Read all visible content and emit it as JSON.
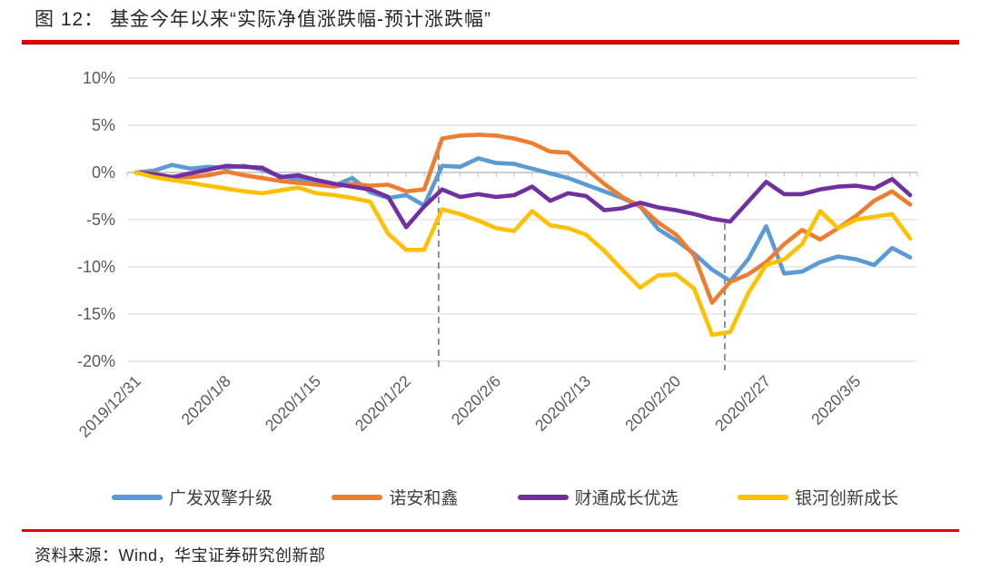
{
  "figure": {
    "title": "图 12： 基金今年以来“实际净值涨跌幅-预计涨跌幅”",
    "source": "资料来源：Wind，华宝证券研究创新部",
    "accent_red": "#E60000"
  },
  "chart_data": {
    "type": "line",
    "title": "基金今年以来“实际净值涨跌幅-预计涨跌幅”",
    "grid": true,
    "legend_position": "bottom",
    "x_axis": {
      "n_points": 44,
      "tick_labels": [
        "2019/12/31",
        "2020/1/8",
        "2020/1/15",
        "2020/1/22",
        "2020/2/6",
        "2020/2/13",
        "2020/2/20",
        "2020/2/27",
        "2020/3/5"
      ],
      "tick_indices": [
        0,
        5,
        10,
        15,
        20,
        25,
        30,
        35,
        40
      ]
    },
    "y_axis": {
      "ticks": [
        10,
        5,
        0,
        -5,
        -10,
        -15,
        -20
      ],
      "suffix": "%",
      "ylim": [
        -20,
        10
      ]
    },
    "vlines": [
      {
        "index": 16.8,
        "style": "dashed"
      },
      {
        "index": 32.7,
        "style": "dashed"
      }
    ],
    "series": [
      {
        "name": "广发双擎升级",
        "color": "#5B9BD5",
        "values": [
          0.0,
          0.2,
          0.8,
          0.4,
          0.6,
          0.5,
          0.7,
          0.3,
          -0.4,
          -0.7,
          -1.2,
          -1.4,
          -0.6,
          -2.1,
          -2.7,
          -2.4,
          -3.5,
          0.7,
          0.6,
          1.5,
          1.0,
          0.9,
          0.4,
          -0.1,
          -0.6,
          -1.3,
          -2.0,
          -2.7,
          -3.6,
          -6.0,
          -7.2,
          -8.6,
          -10.3,
          -11.5,
          -9.2,
          -5.7,
          -10.7,
          -10.5,
          -9.5,
          -8.9,
          -9.2,
          -9.8,
          -8.0,
          -9.0
        ]
      },
      {
        "name": "诺安和鑫",
        "color": "#ED7D31",
        "values": [
          0.0,
          -0.1,
          -0.5,
          -0.5,
          -0.3,
          0.1,
          -0.3,
          -0.6,
          -0.9,
          -1.1,
          -1.3,
          -1.5,
          -1.2,
          -1.4,
          -1.3,
          -2.0,
          -1.8,
          3.6,
          3.9,
          4.0,
          3.9,
          3.6,
          3.1,
          2.2,
          2.1,
          0.4,
          -1.2,
          -2.6,
          -3.6,
          -5.3,
          -6.6,
          -8.8,
          -13.8,
          -11.6,
          -10.8,
          -9.5,
          -7.6,
          -6.1,
          -7.1,
          -5.9,
          -4.6,
          -3.0,
          -2.0,
          -3.4
        ]
      },
      {
        "name": "财通成长优选",
        "color": "#7030A0",
        "values": [
          0.0,
          -0.2,
          -0.5,
          -0.1,
          0.3,
          0.7,
          0.6,
          0.5,
          -0.5,
          -0.3,
          -0.8,
          -1.2,
          -1.5,
          -1.8,
          -2.6,
          -5.8,
          -3.6,
          -1.8,
          -2.6,
          -2.3,
          -2.6,
          -2.4,
          -1.5,
          -3.0,
          -2.2,
          -2.5,
          -4.0,
          -3.8,
          -3.2,
          -3.7,
          -4.0,
          -4.4,
          -4.9,
          -5.2,
          -3.1,
          -1.0,
          -2.3,
          -2.3,
          -1.8,
          -1.5,
          -1.4,
          -1.7,
          -0.7,
          -2.4
        ]
      },
      {
        "name": "银河创新成长",
        "color": "#FFC000",
        "values": [
          0.0,
          -0.5,
          -0.8,
          -1.1,
          -1.4,
          -1.7,
          -2.0,
          -2.2,
          -1.9,
          -1.6,
          -2.2,
          -2.4,
          -2.7,
          -3.1,
          -6.5,
          -8.2,
          -8.2,
          -3.9,
          -4.4,
          -5.1,
          -5.9,
          -6.2,
          -4.1,
          -5.6,
          -5.9,
          -6.6,
          -8.3,
          -10.3,
          -12.2,
          -10.9,
          -10.8,
          -12.3,
          -17.2,
          -16.9,
          -12.8,
          -9.8,
          -9.2,
          -7.6,
          -4.1,
          -5.9,
          -5.0,
          -4.7,
          -4.4,
          -7.0
        ]
      }
    ]
  }
}
